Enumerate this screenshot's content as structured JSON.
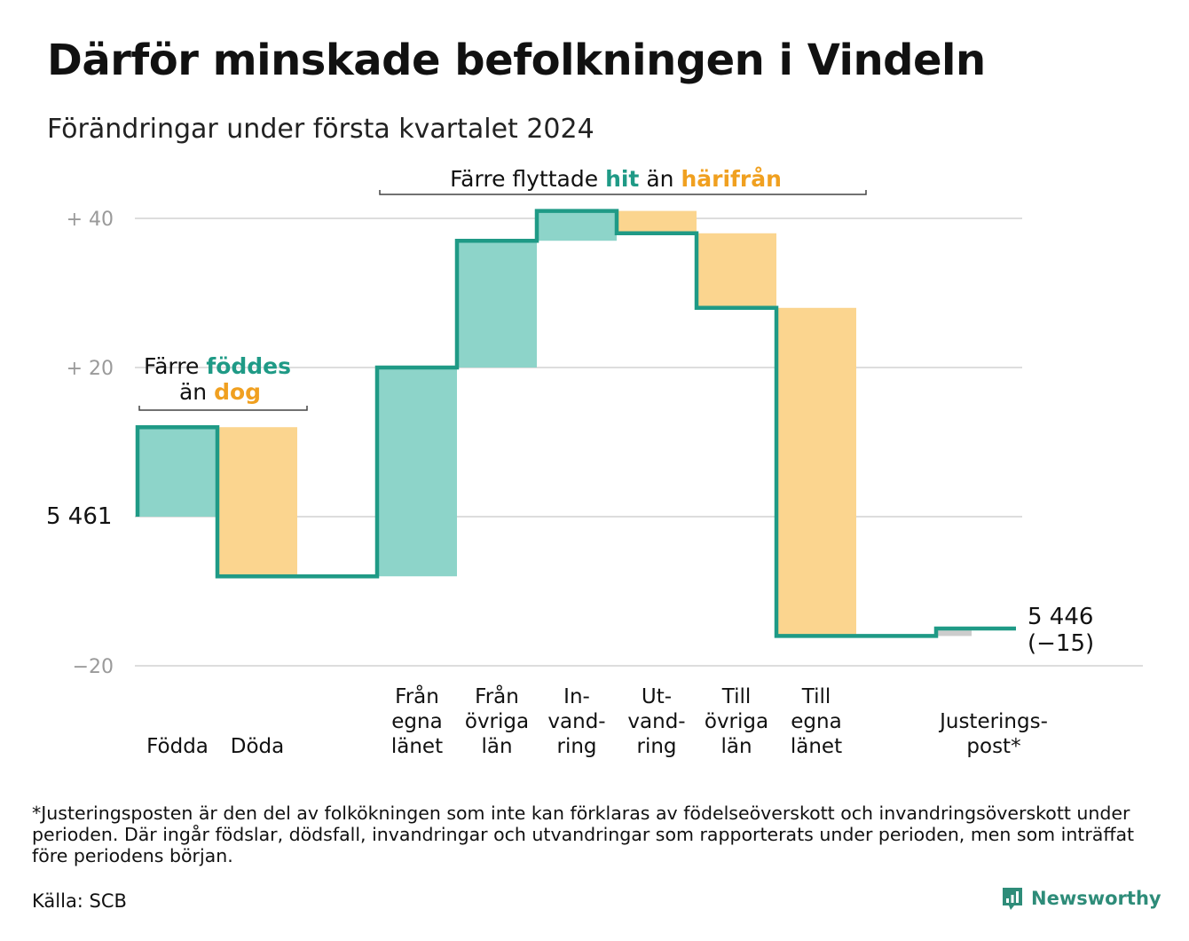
{
  "title": "Därför minskade befolkningen i Vindeln",
  "subtitle": "Förändringar under första kvartalet 2024",
  "footnote": "*Justeringsposten är den del av folkökningen som inte kan förklaras av födelseöverskott och invandringsöverskott under perioden. Där ingår födslar, dödsfall, invandringar och utvandringar som rapporterats under perioden, men som inträffat före periodens början.",
  "source": "Källa: SCB",
  "brand": "Newsworthy",
  "colors": {
    "increase": "#8dd4c9",
    "decrease": "#fbd58f",
    "line": "#1f9a86",
    "adjust": "#cccccc",
    "grid": "#dddddd"
  },
  "chart_data": {
    "type": "waterfall",
    "start_value": 5461,
    "start_label": "5 461",
    "ylim": [
      -20,
      40
    ],
    "yticks": [
      {
        "value": 40,
        "label": "+ 40"
      },
      {
        "value": 20,
        "label": "+ 20"
      },
      {
        "value": 0,
        "label": "5 461"
      },
      {
        "value": -20,
        "label": "−20"
      }
    ],
    "steps": [
      {
        "label": [
          "Födda"
        ],
        "change": 12,
        "kind": "increase"
      },
      {
        "label": [
          "Döda"
        ],
        "change": -20,
        "kind": "decrease"
      },
      {
        "label": [],
        "change": 0,
        "kind": "gap"
      },
      {
        "label": [
          "Från",
          "egna",
          "länet"
        ],
        "change": 28,
        "kind": "increase"
      },
      {
        "label": [
          "Från",
          "övriga",
          "län"
        ],
        "change": 17,
        "kind": "increase"
      },
      {
        "label": [
          "In-",
          "vand-",
          "ring"
        ],
        "change": 4,
        "kind": "increase"
      },
      {
        "label": [
          "Ut-",
          "vand-",
          "ring"
        ],
        "change": -3,
        "kind": "decrease"
      },
      {
        "label": [
          "Till",
          "övriga",
          "län"
        ],
        "change": -10,
        "kind": "decrease"
      },
      {
        "label": [
          "Till",
          "egna",
          "länet"
        ],
        "change": -44,
        "kind": "decrease"
      },
      {
        "label": [],
        "change": 0,
        "kind": "gap"
      },
      {
        "label": [
          "Justerings-",
          "post*"
        ],
        "change": 1,
        "kind": "adjust"
      }
    ],
    "end_value": 5446,
    "end_label": "5 446",
    "end_change": "(−15)",
    "annotations": [
      {
        "parts": [
          {
            "text": "Färre ",
            "style": "plain"
          },
          {
            "text": "föddes",
            "style": "teal"
          }
        ],
        "parts2": [
          {
            "text": "än ",
            "style": "plain"
          },
          {
            "text": "dog",
            "style": "orange"
          }
        ],
        "span": [
          0,
          1
        ]
      },
      {
        "parts": [
          {
            "text": "Färre flyttade ",
            "style": "plain"
          },
          {
            "text": "hit",
            "style": "teal"
          },
          {
            "text": " än ",
            "style": "plain"
          },
          {
            "text": "härifrån",
            "style": "orange"
          }
        ],
        "span": [
          3,
          8
        ]
      }
    ]
  }
}
